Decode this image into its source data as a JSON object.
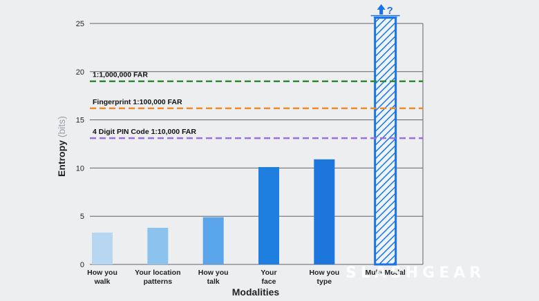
{
  "chart_data": {
    "type": "bar",
    "title": "",
    "xlabel": "Modalities",
    "ylabel": "Entropy (bits)",
    "ylabel_main": "Entropy",
    "ylabel_unit": "(bits)",
    "ylim": [
      0,
      26
    ],
    "yticks": [
      0,
      5,
      10,
      15,
      20,
      25
    ],
    "grid": true,
    "categories": [
      [
        "How you",
        "walk"
      ],
      [
        "Your location",
        "patterns"
      ],
      [
        "How you",
        "talk"
      ],
      [
        "Your",
        "face"
      ],
      [
        "How you",
        "type"
      ],
      [
        "Multi-Modal"
      ]
    ],
    "values": [
      3.3,
      3.8,
      4.9,
      10.1,
      10.9,
      25.6
    ],
    "bar_colors": [
      "#b6d6f2",
      "#8cc2ee",
      "#5aa5ea",
      "#1f7fe0",
      "#1c76db",
      "#1a73e8"
    ],
    "annotation": "?",
    "reference_lines": [
      {
        "label": "1:1,000,000 FAR",
        "value": 19.0,
        "color": "#2e8b2e"
      },
      {
        "label": "Fingerprint 1:100,000 FAR",
        "value": 16.2,
        "color": "#f08a24"
      },
      {
        "label": "4 Digit PIN Code 1:10,000 FAR",
        "value": 13.1,
        "color": "#9b6fe0"
      }
    ]
  },
  "watermark": "SLASHGEAR"
}
